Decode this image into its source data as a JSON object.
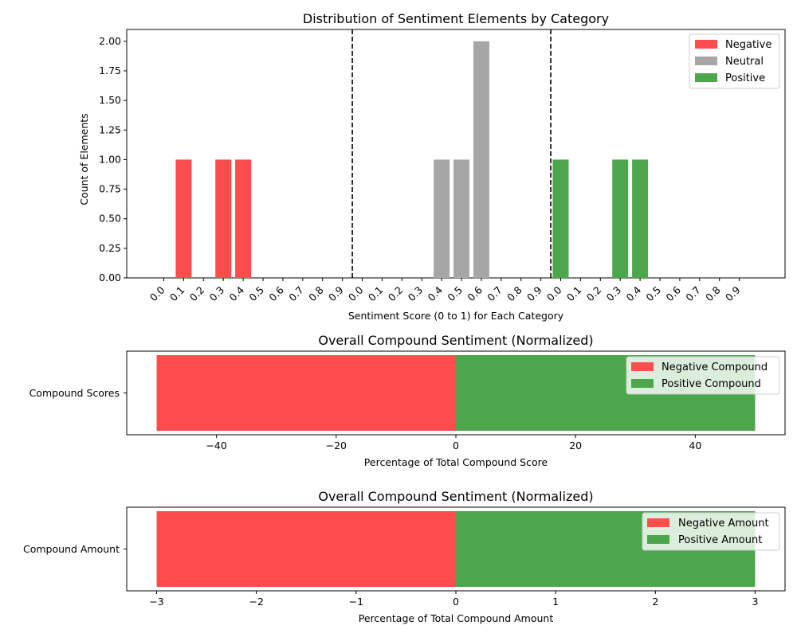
{
  "chart_data": [
    {
      "type": "bar",
      "title": "Distribution of Sentiment Elements by Category",
      "xlabel": "Sentiment Score (0 to 1) for Each Category",
      "ylabel": "Count of Elements",
      "ylim": [
        0,
        2.1
      ],
      "yticks": [
        "0.00",
        "0.25",
        "0.50",
        "0.75",
        "1.00",
        "1.25",
        "1.50",
        "1.75",
        "2.00"
      ],
      "ytick_values": [
        0,
        0.25,
        0.5,
        0.75,
        1.0,
        1.25,
        1.5,
        1.75,
        2.0
      ],
      "categories": [
        "0.0",
        "0.1",
        "0.2",
        "0.3",
        "0.4",
        "0.5",
        "0.6",
        "0.7",
        "0.8",
        "0.9"
      ],
      "series": [
        {
          "name": "Negative",
          "color": "#ff4c4c",
          "values": [
            0,
            1,
            0,
            1,
            1,
            0,
            0,
            0,
            0,
            0
          ]
        },
        {
          "name": "Neutral",
          "color": "#a6a6a6",
          "values": [
            0,
            0,
            0,
            0,
            1,
            1,
            2,
            0,
            0,
            0
          ]
        },
        {
          "name": "Positive",
          "color": "#4ca64c",
          "values": [
            1,
            0,
            0,
            1,
            1,
            0,
            0,
            0,
            0,
            0
          ]
        }
      ],
      "separator_style": "dashed",
      "legend": "top-right",
      "grid": false
    },
    {
      "type": "bar",
      "orientation": "horizontal",
      "title": "Overall Compound Sentiment (Normalized)",
      "xlabel": "Percentage of Total Compound Score",
      "category": "Compound Scores",
      "xlim": [
        -55,
        55
      ],
      "xticks": [
        "−40",
        "−20",
        "0",
        "20",
        "40"
      ],
      "xtick_values": [
        -40,
        -20,
        0,
        20,
        40
      ],
      "series": [
        {
          "name": "Negative Compound",
          "color": "#ff4c4c",
          "value": -50
        },
        {
          "name": "Positive Compound",
          "color": "#4ca64c",
          "value": 50
        }
      ],
      "legend": "top-right",
      "grid": false
    },
    {
      "type": "bar",
      "orientation": "horizontal",
      "title": "Overall Compound Sentiment (Normalized)",
      "xlabel": "Percentage of Total Compound Amount",
      "category": "Compound Amount",
      "xlim": [
        -3.3,
        3.3
      ],
      "xticks": [
        "−3",
        "−2",
        "−1",
        "0",
        "1",
        "2",
        "3"
      ],
      "xtick_values": [
        -3,
        -2,
        -1,
        0,
        1,
        2,
        3
      ],
      "series": [
        {
          "name": "Negative Amount",
          "color": "#ff4c4c",
          "value": -3
        },
        {
          "name": "Positive Amount",
          "color": "#4ca64c",
          "value": 3
        }
      ],
      "legend": "top-right",
      "grid": false
    }
  ]
}
